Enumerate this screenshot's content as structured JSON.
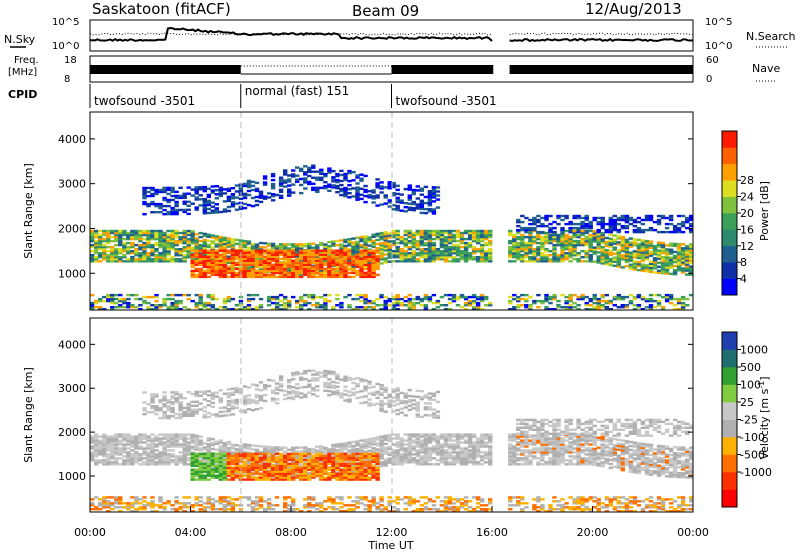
{
  "header": {
    "station": "Saskatoon (fitACF)",
    "beam": "Beam 09",
    "date": "12/Aug/2013"
  },
  "summary": {
    "nsky_label": "N.Sky",
    "nsearch_label": "N.Search",
    "nsky_ticks": [
      "10^5",
      "10^0"
    ],
    "nsearch_ticks": [
      "10^5",
      "10^0"
    ],
    "freq_label_1": "Freq.",
    "freq_label_2": "[MHz]",
    "freq_ticks": [
      "18",
      "8"
    ],
    "nave_label": "Nave",
    "nave_ticks": [
      "60",
      "0"
    ],
    "cpid_label": "CPID",
    "cpid_segments": [
      {
        "label": "twofsound -3501",
        "start_h": 0,
        "end_h": 6
      },
      {
        "label": "normal (fast) 151",
        "start_h": 6,
        "end_h": 12
      },
      {
        "label": "twofsound -3501",
        "start_h": 12,
        "end_h": 16
      }
    ]
  },
  "chart_data": [
    {
      "type": "heatmap",
      "quantity": "power",
      "ylabel": "Slant Range [km]",
      "ylim": [
        180,
        4600
      ],
      "yticks": [
        "1000",
        "2000",
        "3000",
        "4000"
      ],
      "xlim_hours": [
        0,
        24
      ],
      "colorbar_label": "Power [dB]",
      "colorbar_ticks": [
        "4",
        "8",
        "12",
        "16",
        "20",
        "24",
        "28"
      ],
      "colorbar_colors": [
        "#0000ff",
        "#0f2fa8",
        "#1f5f8f",
        "#2e8a6c",
        "#3aa05a",
        "#7fc13a",
        "#dddd22",
        "#ffa000",
        "#ff6000",
        "#ff1a00"
      ],
      "data_gap_hours": [
        16.05,
        16.7
      ]
    },
    {
      "type": "heatmap",
      "quantity": "velocity",
      "ylabel": "Slant Range [km]",
      "ylim": [
        180,
        4600
      ],
      "yticks": [
        "1000",
        "2000",
        "3000",
        "4000"
      ],
      "xlabel": "Time UT",
      "xlim_hours": [
        0,
        24
      ],
      "xticks": [
        "00:00",
        "04:00",
        "08:00",
        "12:00",
        "16:00",
        "20:00",
        "00:00"
      ],
      "colorbar_label": "Velocity [m s",
      "colorbar_label_exponent": "-1",
      "colorbar_label_end": "]",
      "colorbar_ticks": [
        "1000",
        "500",
        "100",
        "25",
        "-25",
        "-100",
        "-500",
        "-1000"
      ],
      "colorbar_colors": [
        "#2040b0",
        "#1f6f70",
        "#30a030",
        "#80cc40",
        "#c8c8c8",
        "#b0b0b0",
        "#ffb000",
        "#ff7000",
        "#ff3000",
        "#ff0000"
      ],
      "data_gap_hours": [
        16.05,
        16.7
      ]
    }
  ]
}
